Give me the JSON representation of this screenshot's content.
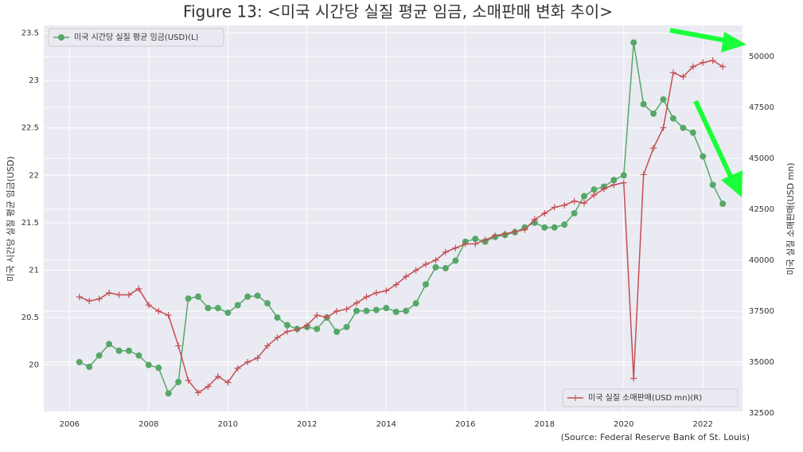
{
  "chart_data": {
    "type": "line",
    "title": "Figure 13: <미국 시간당 실질 평균 임금, 소매판매 변화 추이>",
    "ylabel": "미국 시간당 실질 평균 임금(USD)",
    "y2label": "미국 실질 소매판매(USD mn)",
    "source": "(Source: Federal Reserve Bank of St. Louis)",
    "grid": true,
    "xlim": [
      2005.35,
      2023.0
    ],
    "xticks": [
      2006,
      2008,
      2010,
      2012,
      2014,
      2016,
      2018,
      2020,
      2022
    ],
    "ylim": [
      19.51,
      23.58
    ],
    "yticks": [
      20.0,
      20.5,
      21.0,
      21.5,
      22.0,
      22.5,
      23.0,
      23.5
    ],
    "y2lim": [
      32580,
      51520
    ],
    "y2ticks": [
      32500,
      35000,
      37500,
      40000,
      42500,
      45000,
      47500,
      50000
    ],
    "x": [
      2006.25,
      2006.5,
      2006.75,
      2007,
      2007.25,
      2007.5,
      2007.75,
      2008,
      2008.25,
      2008.5,
      2008.75,
      2009,
      2009.25,
      2009.5,
      2009.75,
      2010,
      2010.25,
      2010.5,
      2010.75,
      2011,
      2011.25,
      2011.5,
      2011.75,
      2012,
      2012.25,
      2012.5,
      2012.75,
      2013,
      2013.25,
      2013.5,
      2013.75,
      2014,
      2014.25,
      2014.5,
      2014.75,
      2015,
      2015.25,
      2015.5,
      2015.75,
      2016,
      2016.25,
      2016.5,
      2016.75,
      2017,
      2017.25,
      2017.5,
      2017.75,
      2018,
      2018.25,
      2018.5,
      2018.75,
      2019,
      2019.25,
      2019.5,
      2019.75,
      2020,
      2020.25,
      2020.5,
      2020.75,
      2021,
      2021.25,
      2021.5,
      2021.75,
      2022,
      2022.25,
      2022.5
    ],
    "series": [
      {
        "name": "미국 시간당 실질 평균 임금(USD)(L)",
        "color": "#55a868",
        "marker": "circle",
        "legend_loc": "upper left",
        "axis": "y",
        "values": [
          20.03,
          19.98,
          20.1,
          20.22,
          20.15,
          20.15,
          20.1,
          20.0,
          19.97,
          19.7,
          19.82,
          20.7,
          20.72,
          20.6,
          20.6,
          20.55,
          20.63,
          20.72,
          20.73,
          20.65,
          20.5,
          20.42,
          20.38,
          20.4,
          20.38,
          20.5,
          20.35,
          20.4,
          20.57,
          20.57,
          20.58,
          20.6,
          20.56,
          20.57,
          20.65,
          20.85,
          21.03,
          21.02,
          21.1,
          21.3,
          21.33,
          21.3,
          21.35,
          21.37,
          21.4,
          21.45,
          21.5,
          21.45,
          21.45,
          21.48,
          21.6,
          21.78,
          21.85,
          21.88,
          21.95,
          22.0,
          23.4,
          22.75,
          22.65,
          22.8,
          22.6,
          22.5,
          22.45,
          22.2,
          21.9,
          21.7
        ]
      },
      {
        "name": "미국 실질 소매판매(USD mn)(R)",
        "color": "#c44e52",
        "marker": "plus",
        "legend_loc": "lower right",
        "axis": "y2",
        "values": [
          38200,
          38000,
          38100,
          38400,
          38300,
          38300,
          38600,
          37800,
          37500,
          37300,
          35800,
          34100,
          33500,
          33800,
          34300,
          34000,
          34700,
          35000,
          35200,
          35800,
          36200,
          36500,
          36600,
          36800,
          37300,
          37200,
          37500,
          37600,
          37900,
          38200,
          38400,
          38500,
          38800,
          39200,
          39500,
          39800,
          40000,
          40400,
          40600,
          40800,
          40800,
          41000,
          41200,
          41300,
          41400,
          41500,
          42000,
          42300,
          42600,
          42700,
          42900,
          42800,
          43200,
          43500,
          43700,
          43800,
          34200,
          44200,
          45500,
          46500,
          49200,
          49000,
          49500,
          49700,
          49800,
          49500
        ]
      }
    ]
  }
}
